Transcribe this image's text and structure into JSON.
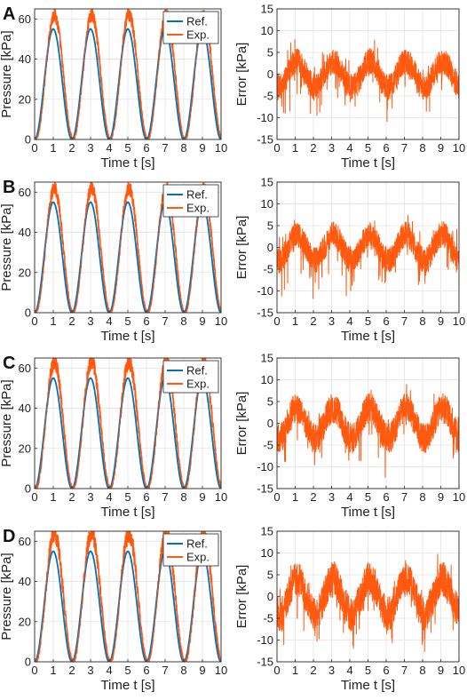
{
  "colors": {
    "ref": "#0072BD",
    "exp": "#FF5A10",
    "grid": "#e3e3e3",
    "axis": "#262626"
  },
  "panels": [
    "A",
    "B",
    "C",
    "D"
  ],
  "chart_data": [
    {
      "panel": "A",
      "type": "line",
      "xlabel": "Time t [s]",
      "ylabel": "Pressure [kPa]",
      "xlim": [
        0,
        10
      ],
      "ylim": [
        0,
        65
      ],
      "xticks": [
        0,
        1,
        2,
        3,
        4,
        5,
        6,
        7,
        8,
        9,
        10
      ],
      "yticks": [
        0,
        20,
        40,
        60
      ],
      "grid": true,
      "legend": "top-right",
      "series": [
        {
          "name": "Ref.",
          "kind": "ref",
          "period_s": 2,
          "min": 0,
          "max": 55,
          "peak_times_s": [
            1,
            3,
            5,
            7,
            9
          ]
        },
        {
          "name": "Exp.",
          "kind": "exp",
          "period_s": 2,
          "min": 0,
          "max": 62,
          "peak_times_s": [
            1,
            3,
            5,
            7,
            9
          ],
          "noise_kpa": 2.5
        }
      ]
    },
    {
      "panel": "A",
      "type": "line",
      "xlabel": "Time t [s]",
      "ylabel": "Error [kPa]",
      "xlim": [
        0,
        10
      ],
      "ylim": [
        -15,
        15
      ],
      "xticks": [
        0,
        1,
        2,
        3,
        4,
        5,
        6,
        7,
        8,
        9,
        10
      ],
      "yticks": [
        -15,
        -10,
        -5,
        0,
        5,
        10,
        15
      ],
      "grid": true,
      "series": [
        {
          "kind": "err",
          "period_s": 2,
          "mean": 0,
          "amplitude": 3,
          "max": 8,
          "min": -14,
          "noise_kpa": 3
        }
      ]
    },
    {
      "panel": "B",
      "type": "line",
      "xlabel": "Time t [s]",
      "ylabel": "Pressure [kPa]",
      "xlim": [
        0,
        10
      ],
      "ylim": [
        0,
        65
      ],
      "xticks": [
        0,
        1,
        2,
        3,
        4,
        5,
        6,
        7,
        8,
        9,
        10
      ],
      "yticks": [
        0,
        20,
        40,
        60
      ],
      "grid": true,
      "legend": "top-right",
      "series": [
        {
          "name": "Ref.",
          "kind": "ref",
          "period_s": 2,
          "min": 0,
          "max": 55,
          "peak_times_s": [
            1,
            3,
            5,
            7,
            9
          ]
        },
        {
          "name": "Exp.",
          "kind": "exp",
          "period_s": 2,
          "min": 0,
          "max": 62,
          "peak_times_s": [
            1,
            3,
            5,
            7,
            9
          ],
          "noise_kpa": 2.5
        }
      ]
    },
    {
      "panel": "B",
      "type": "line",
      "xlabel": "Time t [s]",
      "ylabel": "Error [kPa]",
      "xlim": [
        0,
        10
      ],
      "ylim": [
        -15,
        15
      ],
      "xticks": [
        0,
        1,
        2,
        3,
        4,
        5,
        6,
        7,
        8,
        9,
        10
      ],
      "yticks": [
        -15,
        -10,
        -5,
        0,
        5,
        10,
        15
      ],
      "grid": true,
      "series": [
        {
          "kind": "err",
          "period_s": 2,
          "mean": 0,
          "amplitude": 3,
          "max": 8,
          "min": -13,
          "noise_kpa": 3
        }
      ]
    },
    {
      "panel": "C",
      "type": "line",
      "xlabel": "Time t [s]",
      "ylabel": "Pressure [kPa]",
      "xlim": [
        0,
        10
      ],
      "ylim": [
        0,
        65
      ],
      "xticks": [
        0,
        1,
        2,
        3,
        4,
        5,
        6,
        7,
        8,
        9,
        10
      ],
      "yticks": [
        0,
        20,
        40,
        60
      ],
      "grid": true,
      "legend": "top-right",
      "series": [
        {
          "name": "Ref.",
          "kind": "ref",
          "period_s": 2,
          "min": 0,
          "max": 55,
          "peak_times_s": [
            1,
            3,
            5,
            7,
            9
          ]
        },
        {
          "name": "Exp.",
          "kind": "exp",
          "period_s": 2,
          "min": 0,
          "max": 63,
          "peak_times_s": [
            1,
            3,
            5,
            7,
            9
          ],
          "noise_kpa": 3
        }
      ]
    },
    {
      "panel": "C",
      "type": "line",
      "xlabel": "Time t [s]",
      "ylabel": "Error [kPa]",
      "xlim": [
        0,
        10
      ],
      "ylim": [
        -15,
        15
      ],
      "xticks": [
        0,
        1,
        2,
        3,
        4,
        5,
        6,
        7,
        8,
        9,
        10
      ],
      "yticks": [
        -15,
        -10,
        -5,
        0,
        5,
        10,
        15
      ],
      "grid": true,
      "series": [
        {
          "kind": "err",
          "period_s": 2,
          "mean": 0,
          "amplitude": 3.5,
          "max": 9,
          "min": -14,
          "noise_kpa": 3.5
        }
      ]
    },
    {
      "panel": "D",
      "type": "line",
      "xlabel": "Time t [s]",
      "ylabel": "Pressure [kPa]",
      "xlim": [
        0,
        10
      ],
      "ylim": [
        0,
        65
      ],
      "xticks": [
        0,
        1,
        2,
        3,
        4,
        5,
        6,
        7,
        8,
        9,
        10
      ],
      "yticks": [
        0,
        20,
        40,
        60
      ],
      "grid": true,
      "legend": "top-right",
      "series": [
        {
          "name": "Ref.",
          "kind": "ref",
          "period_s": 2,
          "min": 0,
          "max": 55,
          "peak_times_s": [
            1,
            3,
            5,
            7,
            9
          ]
        },
        {
          "name": "Exp.",
          "kind": "exp",
          "period_s": 2,
          "min": 0,
          "max": 64,
          "peak_times_s": [
            1,
            3,
            5,
            7,
            9
          ],
          "noise_kpa": 3.5
        }
      ]
    },
    {
      "panel": "D",
      "type": "line",
      "xlabel": "Time t [s]",
      "ylabel": "Error [kPa]",
      "xlim": [
        0,
        10
      ],
      "ylim": [
        -15,
        15
      ],
      "xticks": [
        0,
        1,
        2,
        3,
        4,
        5,
        6,
        7,
        8,
        9,
        10
      ],
      "yticks": [
        -15,
        -10,
        -5,
        0,
        5,
        10,
        15
      ],
      "grid": true,
      "series": [
        {
          "kind": "err",
          "period_s": 2,
          "mean": 0,
          "amplitude": 4,
          "max": 10,
          "min": -14,
          "noise_kpa": 4
        }
      ]
    }
  ]
}
